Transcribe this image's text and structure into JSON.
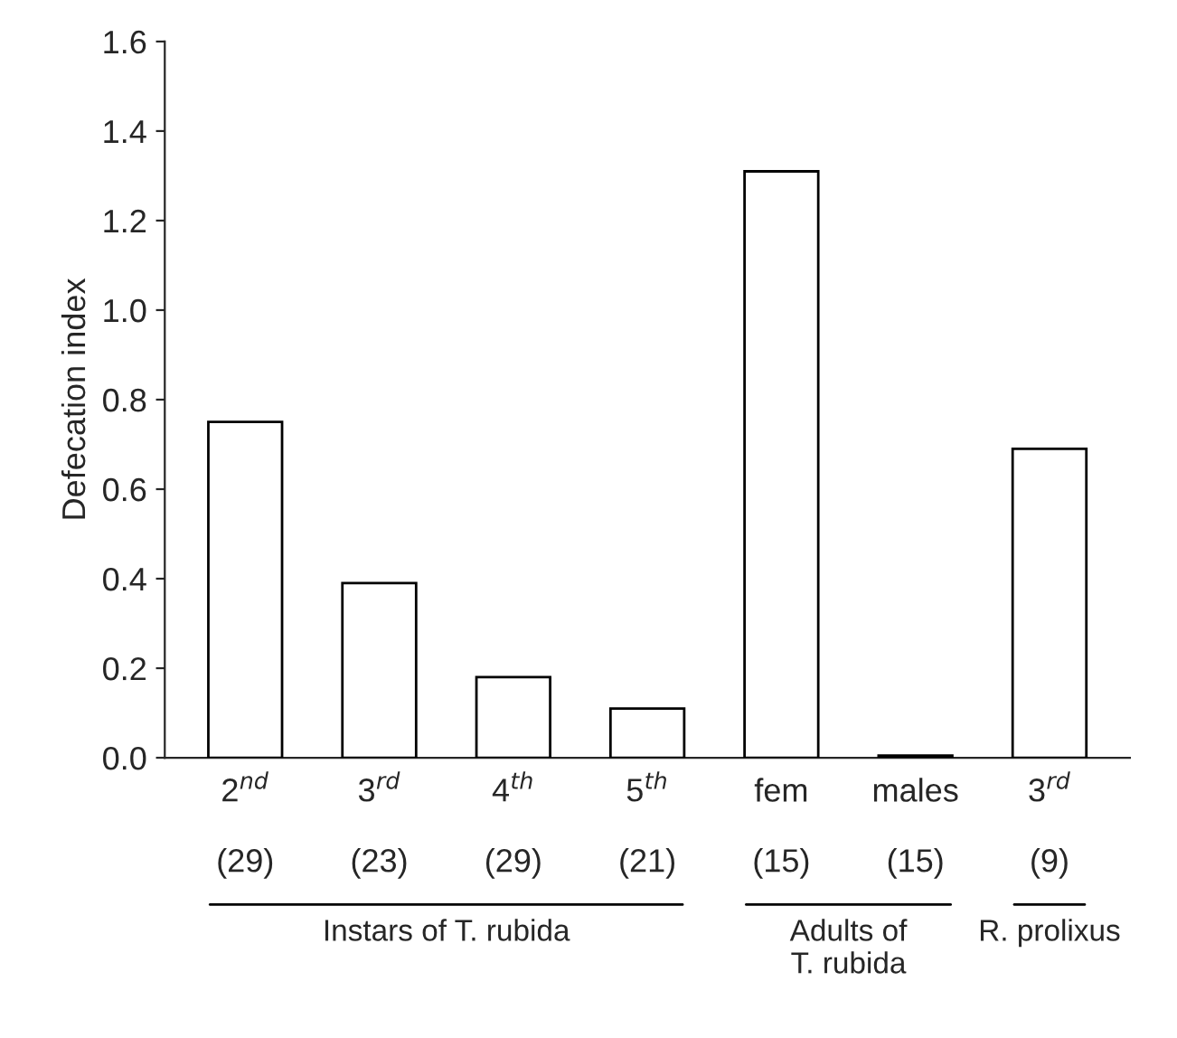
{
  "chart_data": {
    "type": "bar",
    "ylabel": "Defecation index",
    "categories": [
      "2$^{nd}$\n\n(29)",
      "3$^{rd}$\n\n(23)",
      "4$^{th}$\n\n(29)",
      "5$^{th}$\n\n(21)",
      "fem\n\n(15)",
      "males\n\n(15)",
      "3$^{rd}$\n\n(9)"
    ],
    "values": [
      0.75,
      0.39,
      0.18,
      0.11,
      1.31,
      0.005,
      0.69
    ],
    "color": "#ffffff",
    "ylim": [
      0,
      1.6
    ],
    "yticks": [
      {
        "value": 0,
        "label": "0.0"
      },
      {
        "value": 0.2,
        "label": "0.2"
      },
      {
        "value": 0.4,
        "label": "0.4"
      },
      {
        "value": 0.6,
        "label": "0.6"
      },
      {
        "value": 0.8,
        "label": "0.8"
      },
      {
        "value": 1.0,
        "label": "1.0"
      },
      {
        "value": 1.2,
        "label": "1.2"
      },
      {
        "value": 1.4,
        "label": "1.4"
      },
      {
        "value": 1.6,
        "label": "1.6"
      }
    ],
    "annotations": [
      "Instars of T. rubida",
      "Adults of\nT. rubida",
      "R. prolixus"
    ],
    "grid": false
  }
}
